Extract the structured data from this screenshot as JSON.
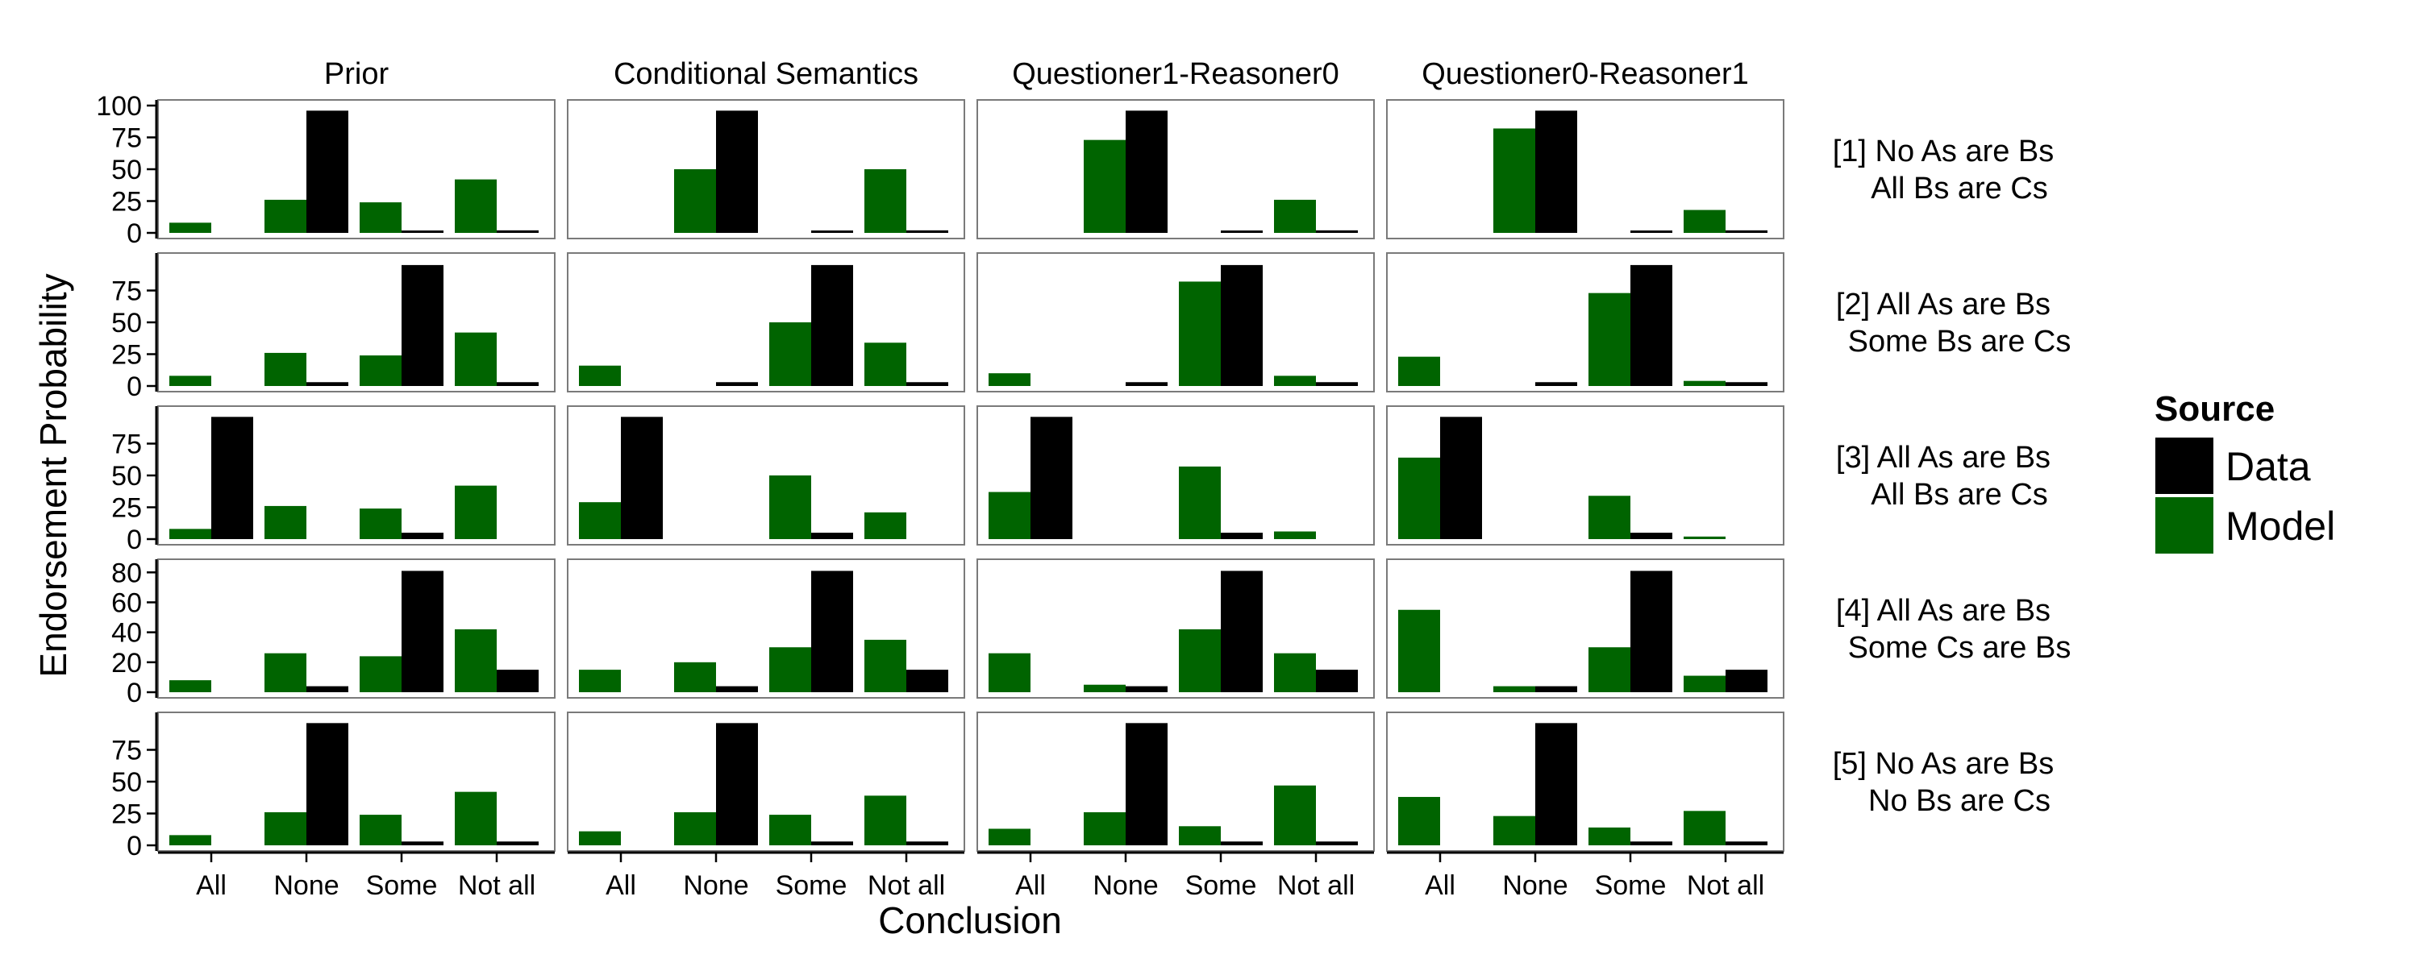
{
  "chart_data": {
    "type": "bar",
    "categories": [
      "All",
      "None",
      "Some",
      "Not all"
    ],
    "facet_columns": [
      "Prior",
      "Conditional Semantics",
      "Questioner1-Reasoner0",
      "Questioner0-Reasoner1"
    ],
    "facet_rows": [
      {
        "label_lines": [
          "[1] No As are Bs",
          "All Bs are Cs"
        ],
        "ylim": [
          0,
          100
        ],
        "ticks": [
          0,
          25,
          50,
          75,
          100
        ]
      },
      {
        "label_lines": [
          "[2] All As are Bs",
          "Some Bs are Cs"
        ],
        "ylim": [
          0,
          100
        ],
        "ticks": [
          0,
          25,
          50,
          75
        ]
      },
      {
        "label_lines": [
          "[3] All As are Bs",
          "All Bs are Cs"
        ],
        "ylim": [
          0,
          100
        ],
        "ticks": [
          0,
          25,
          50,
          75
        ]
      },
      {
        "label_lines": [
          "[4] All As are Bs",
          "Some Cs are Bs"
        ],
        "ylim": [
          0,
          85
        ],
        "ticks": [
          0,
          20,
          40,
          60,
          80
        ]
      },
      {
        "label_lines": [
          "[5] No As are Bs",
          "No Bs are Cs"
        ],
        "ylim": [
          0,
          100
        ],
        "ticks": [
          0,
          25,
          50,
          75
        ]
      }
    ],
    "xlabel": "Conclusion",
    "ylabel": "Endorsement Probability",
    "legend": {
      "title": "Source",
      "position": "right",
      "items": [
        {
          "name": "Data",
          "color": "#000000"
        },
        {
          "name": "Model",
          "color": "#006400"
        }
      ]
    },
    "grid": false,
    "panels": [
      [
        {
          "model": [
            8,
            26,
            24,
            42
          ],
          "data": [
            0,
            96,
            1,
            2
          ]
        },
        {
          "model": [
            0,
            50,
            0,
            50
          ],
          "data": [
            0,
            96,
            1,
            2
          ]
        },
        {
          "model": [
            0,
            73,
            0,
            26
          ],
          "data": [
            0,
            96,
            1,
            2
          ]
        },
        {
          "model": [
            0,
            82,
            0,
            18
          ],
          "data": [
            0,
            96,
            1,
            2
          ]
        }
      ],
      [
        {
          "model": [
            8,
            26,
            24,
            42
          ],
          "data": [
            0,
            3,
            95,
            3
          ]
        },
        {
          "model": [
            16,
            0,
            50,
            34
          ],
          "data": [
            0,
            3,
            95,
            3
          ]
        },
        {
          "model": [
            10,
            0,
            82,
            8
          ],
          "data": [
            0,
            3,
            95,
            3
          ]
        },
        {
          "model": [
            23,
            0,
            73,
            4
          ],
          "data": [
            0,
            3,
            95,
            3
          ]
        }
      ],
      [
        {
          "model": [
            8,
            26,
            24,
            42
          ],
          "data": [
            96,
            0,
            5,
            0
          ]
        },
        {
          "model": [
            29,
            0,
            50,
            21
          ],
          "data": [
            96,
            0,
            5,
            0
          ]
        },
        {
          "model": [
            37,
            0,
            57,
            6
          ],
          "data": [
            96,
            0,
            5,
            0
          ]
        },
        {
          "model": [
            64,
            0,
            34,
            2
          ],
          "data": [
            96,
            0,
            5,
            0
          ]
        }
      ],
      [
        {
          "model": [
            8,
            26,
            24,
            42
          ],
          "data": [
            0,
            4,
            81,
            15
          ]
        },
        {
          "model": [
            15,
            20,
            30,
            35
          ],
          "data": [
            0,
            4,
            81,
            15
          ]
        },
        {
          "model": [
            26,
            5,
            42,
            26
          ],
          "data": [
            0,
            4,
            81,
            15
          ]
        },
        {
          "model": [
            55,
            4,
            30,
            11
          ],
          "data": [
            0,
            4,
            81,
            15
          ]
        }
      ],
      [
        {
          "model": [
            8,
            26,
            24,
            42
          ],
          "data": [
            0,
            96,
            3,
            3
          ]
        },
        {
          "model": [
            11,
            26,
            24,
            39
          ],
          "data": [
            0,
            96,
            3,
            3
          ]
        },
        {
          "model": [
            13,
            26,
            15,
            47
          ],
          "data": [
            0,
            96,
            3,
            3
          ]
        },
        {
          "model": [
            38,
            23,
            14,
            27
          ],
          "data": [
            0,
            96,
            3,
            3
          ]
        }
      ]
    ]
  }
}
